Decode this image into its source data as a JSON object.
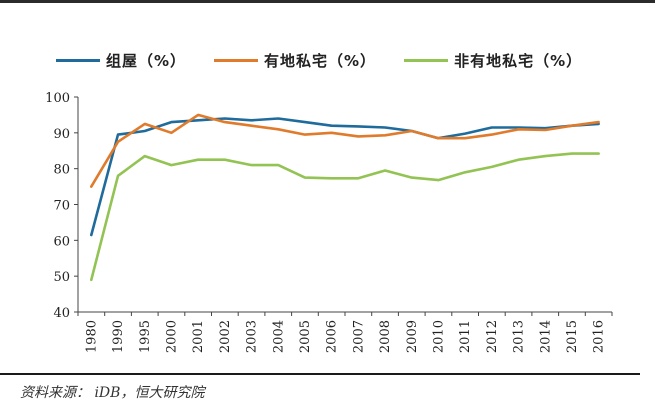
{
  "chart_data": {
    "type": "line",
    "title": "",
    "xlabel": "",
    "ylabel": "",
    "ylim": [
      40,
      100
    ],
    "yticks": [
      40,
      50,
      60,
      70,
      80,
      90,
      100
    ],
    "categories": [
      "1980",
      "1990",
      "1995",
      "2000",
      "2001",
      "2002",
      "2003",
      "2004",
      "2005",
      "2006",
      "2007",
      "2008",
      "2009",
      "2010",
      "2011",
      "2012",
      "2013",
      "2014",
      "2015",
      "2016"
    ],
    "legend_position": "top",
    "grid": false,
    "series": [
      {
        "name": "组屋（%）",
        "color": "#1f6b9c",
        "values": [
          61.5,
          89.5,
          90.5,
          93.0,
          93.5,
          94.0,
          93.5,
          94.0,
          93.0,
          92.0,
          91.8,
          91.5,
          90.5,
          88.5,
          89.8,
          91.5,
          91.5,
          91.3,
          92.0,
          92.5
        ]
      },
      {
        "name": "有地私宅（%）",
        "color": "#e07b2c",
        "values": [
          75.0,
          87.5,
          92.5,
          90.0,
          95.0,
          93.0,
          92.0,
          91.0,
          89.5,
          90.0,
          89.0,
          89.3,
          90.5,
          88.5,
          88.5,
          89.5,
          91.0,
          90.8,
          92.0,
          93.0
        ]
      },
      {
        "name": "非有地私宅（%）",
        "color": "#92c353",
        "values": [
          49.0,
          78.0,
          83.5,
          81.0,
          82.5,
          82.5,
          81.0,
          81.0,
          77.5,
          77.3,
          77.3,
          79.5,
          77.5,
          76.8,
          79.0,
          80.5,
          82.5,
          83.5,
          84.2,
          84.2
        ]
      }
    ]
  },
  "source": "资料来源： iDB，恒大研究院"
}
